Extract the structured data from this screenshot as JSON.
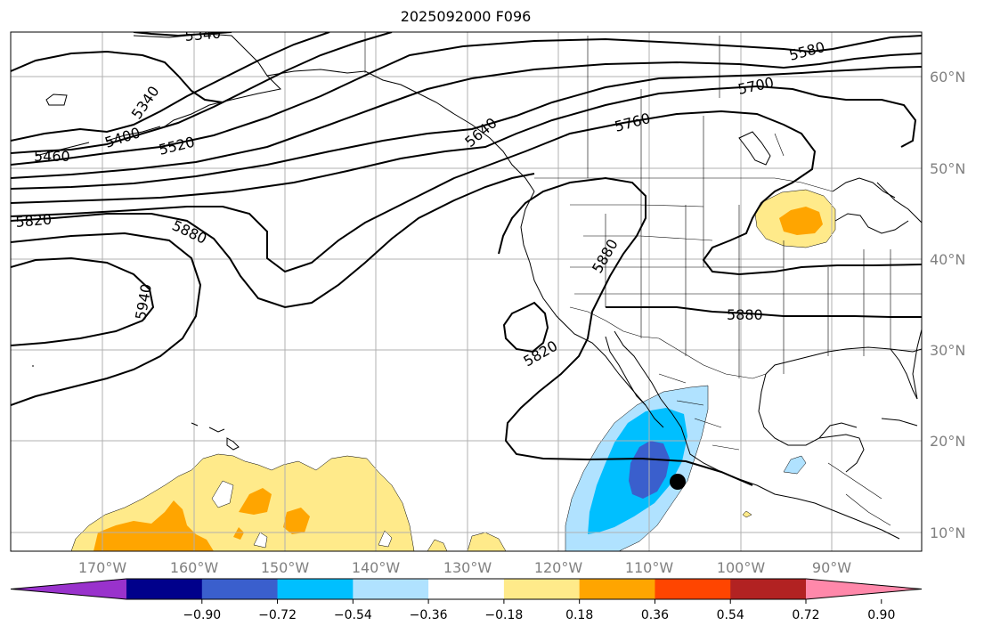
{
  "title": "2025092000 F096",
  "map": {
    "lon_ticks": [
      "170°W",
      "160°W",
      "150°W",
      "140°W",
      "130°W",
      "120°W",
      "110°W",
      "100°W",
      "90°W"
    ],
    "lat_ticks": [
      "60°N",
      "50°N",
      "40°N",
      "30°N",
      "20°N",
      "10°N"
    ],
    "contour_labels": [
      "5340",
      "5340",
      "5400",
      "5460",
      "5520",
      "5580",
      "5640",
      "5700",
      "5760",
      "5820",
      "5820",
      "5880",
      "5880",
      "5880",
      "5940"
    ],
    "colors": {
      "land_outline": "#000000",
      "grid": "#b0b0b0",
      "contour": "#000000",
      "tick_text": "#808080",
      "marker": "#000000"
    }
  },
  "colorbar": {
    "tick_labels": [
      "−0.90",
      "−0.72",
      "−0.54",
      "−0.36",
      "−0.18",
      "0.18",
      "0.36",
      "0.54",
      "0.72",
      "0.90"
    ],
    "colors": [
      "#9932cc",
      "#00008b",
      "#3a5fcd",
      "#00bfff",
      "#b0e2ff",
      "#ffffff",
      "#ffea8a",
      "#ffa500",
      "#ff4500",
      "#b22222",
      "#ff88aa"
    ]
  }
}
